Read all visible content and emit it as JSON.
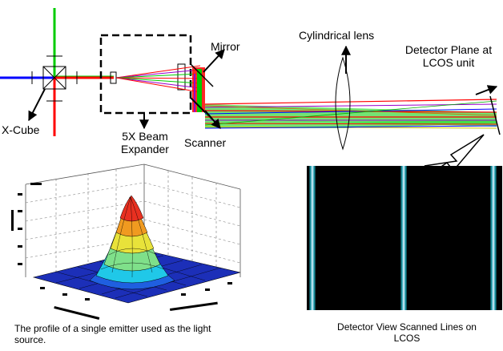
{
  "labels": {
    "x_cube": "X-Cube",
    "beam_expander": "5X Beam Expander",
    "mirror": "Mirror",
    "scanner": "Scanner",
    "cylindrical_lens": "Cylindrical lens",
    "detector_plane": "Detector Plane at LCOS unit"
  },
  "captions": {
    "profile": "The profile of a single emitter used as the light source.",
    "detector_view": "Detector View Scanned Lines on LCOS"
  },
  "beam_colors": {
    "red": "#ff0000",
    "green": "#00cc00",
    "blue": "#0000ff",
    "purple": "#9900cc",
    "yellow": "#cccc00"
  },
  "scanned_lines": {
    "count": 3,
    "core_color": "#e8f2ff",
    "edge_color": "#1aa0b0"
  }
}
